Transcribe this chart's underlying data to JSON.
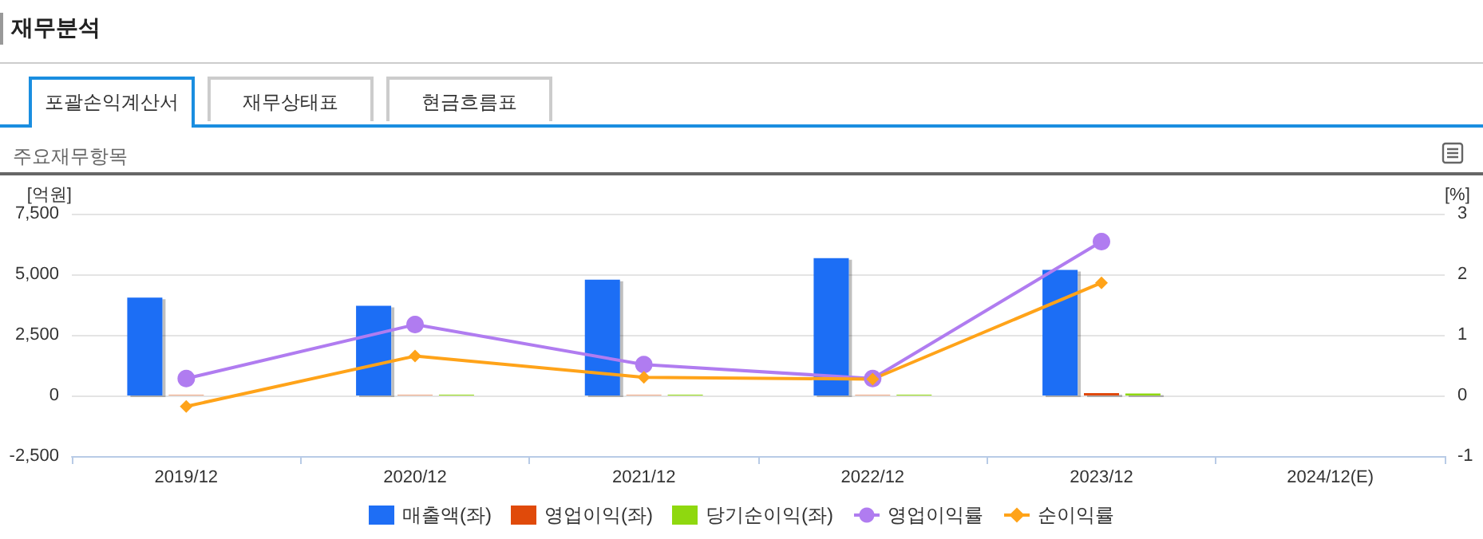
{
  "chart_data": {
    "type": "bar",
    "title": "재무분석",
    "subtitle": "주요재무항목",
    "annotations": [
      "포괄손익계산서",
      "재무상태표",
      "현금흐름표"
    ],
    "categories": [
      "2019/12",
      "2020/12",
      "2021/12",
      "2022/12",
      "2023/12",
      "2024/12(E)"
    ],
    "ylabel": "[억원]",
    "y2label": "[%]",
    "series": [
      {
        "name": "매출액(좌)",
        "color": "#1e6ef5",
        "values": [
          4040,
          3700,
          4780,
          5670,
          5180,
          null
        ]
      },
      {
        "name": "영업이익(좌)",
        "color": "#e04a0a",
        "values": [
          20,
          20,
          20,
          20,
          100,
          null
        ]
      },
      {
        "name": "당기순이익(좌)",
        "color": "#8fd80f",
        "values": [
          null,
          30,
          30,
          30,
          80,
          null
        ]
      },
      {
        "name": "영업이익률",
        "type": "line",
        "axis": "y2",
        "marker": "circle",
        "color": "#b07cf0",
        "values": [
          0.28,
          1.17,
          0.51,
          0.28,
          2.54,
          null
        ]
      },
      {
        "name": "순이익률",
        "type": "line",
        "axis": "y2",
        "marker": "diamond",
        "color": "#ffa319",
        "values": [
          -0.18,
          0.65,
          0.3,
          0.27,
          1.86,
          null
        ]
      }
    ],
    "ylim": [
      -2500,
      7500
    ],
    "yticks": [
      {
        "value": -2500,
        "label": "-2,500"
      },
      {
        "value": 0,
        "label": "0"
      },
      {
        "value": 2500,
        "label": "2,500"
      },
      {
        "value": 5000,
        "label": "5,000"
      },
      {
        "value": 7500,
        "label": "7,500"
      }
    ],
    "y2lim": [
      -1,
      3
    ],
    "y2ticks": [
      -1,
      0,
      1,
      2,
      3
    ],
    "grid": "y",
    "legend": "bottom"
  }
}
